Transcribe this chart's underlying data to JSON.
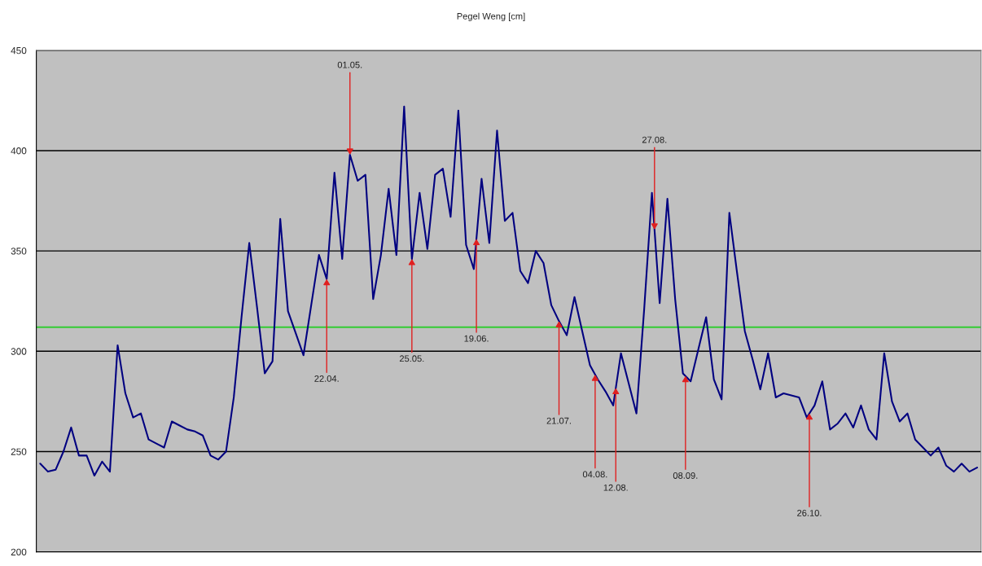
{
  "chart_data": {
    "type": "line",
    "title": "Pegel Weng [cm]",
    "categories": [
      null,
      null,
      null,
      null,
      null,
      null,
      null,
      null,
      null,
      null,
      null,
      null,
      null,
      null,
      null,
      null,
      null,
      null,
      null,
      null,
      null,
      null,
      null,
      null,
      null,
      null,
      null,
      null,
      null,
      null,
      null,
      null,
      null,
      null,
      null,
      null,
      null,
      null,
      null,
      null,
      null,
      null,
      null,
      null,
      null,
      null,
      null,
      null,
      null,
      null,
      null,
      null,
      null,
      null,
      null,
      null,
      null,
      null,
      null,
      null,
      null,
      null,
      null,
      null,
      null,
      null,
      null,
      null,
      null,
      null,
      null,
      null,
      null,
      null,
      null,
      null,
      null,
      null,
      null,
      null,
      null,
      null,
      null,
      null,
      null,
      null,
      null,
      null,
      null,
      null,
      null,
      null,
      null,
      null,
      null,
      null,
      null,
      null,
      null,
      null,
      null,
      null,
      null,
      null,
      null,
      null,
      null,
      null,
      null,
      null,
      null,
      null,
      null,
      null,
      null,
      null,
      null,
      null,
      null,
      null,
      null,
      null
    ],
    "series": [
      {
        "color": "#000080",
        "values": [
          244,
          240,
          241,
          250,
          262,
          248,
          248,
          238,
          245,
          240,
          303,
          279,
          267,
          269,
          256,
          254,
          252,
          265,
          263,
          261,
          260,
          258,
          248,
          246,
          250,
          277,
          317,
          354,
          322,
          289,
          295,
          366,
          320,
          309,
          298,
          323,
          348,
          336,
          389,
          346,
          398,
          385,
          388,
          326,
          348,
          381,
          348,
          422,
          346,
          379,
          351,
          388,
          391,
          367,
          420,
          353,
          341,
          386,
          354,
          410,
          365,
          369,
          340,
          334,
          350,
          344,
          323,
          315,
          308,
          327,
          310,
          293,
          286,
          280,
          273,
          299,
          284,
          269,
          321,
          379,
          324,
          376,
          326,
          289,
          285,
          301,
          317,
          286,
          276,
          369,
          339,
          310,
          296,
          281,
          299,
          277,
          279,
          278,
          277,
          267,
          273,
          285,
          261,
          264,
          269,
          262,
          273,
          261,
          256,
          299,
          275,
          265,
          269,
          256,
          252,
          248,
          252,
          243,
          240,
          244,
          240,
          242
        ]
      }
    ],
    "ylim": [
      200,
      450
    ],
    "yticks": [
      200,
      250,
      300,
      350,
      400,
      450
    ],
    "grid": "y",
    "ref_lines": [
      {
        "axis": "y",
        "value": 312,
        "color": "#33cc33"
      }
    ],
    "annotations": [
      "22.04.",
      "01.05.",
      "25.05.",
      "19.06.",
      "21.07.",
      "04.08.",
      "12.08.",
      "27.08.",
      "08.09.",
      "26.10."
    ]
  }
}
